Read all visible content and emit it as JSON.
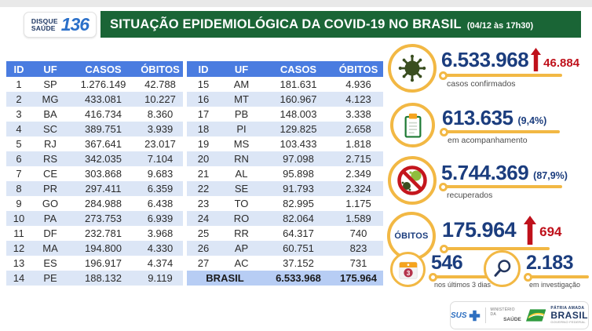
{
  "header": {
    "hotline": {
      "line1": "DISQUE",
      "line2": "SAÚDE",
      "number": "136"
    },
    "title": "SITUAÇÃO EPIDEMIOLÓGICA DA COVID-19 NO BRASIL",
    "timestamp": "(04/12 às 17h30)"
  },
  "tables": {
    "columns": [
      "ID",
      "UF",
      "CASOS",
      "ÓBITOS"
    ],
    "left_rows": [
      [
        "1",
        "SP",
        "1.276.149",
        "42.788"
      ],
      [
        "2",
        "MG",
        "433.081",
        "10.227"
      ],
      [
        "3",
        "BA",
        "416.734",
        "8.360"
      ],
      [
        "4",
        "SC",
        "389.751",
        "3.939"
      ],
      [
        "5",
        "RJ",
        "367.641",
        "23.017"
      ],
      [
        "6",
        "RS",
        "342.035",
        "7.104"
      ],
      [
        "7",
        "CE",
        "303.868",
        "9.683"
      ],
      [
        "8",
        "PR",
        "297.411",
        "6.359"
      ],
      [
        "9",
        "GO",
        "284.988",
        "6.438"
      ],
      [
        "10",
        "PA",
        "273.753",
        "6.939"
      ],
      [
        "11",
        "DF",
        "232.781",
        "3.968"
      ],
      [
        "12",
        "MA",
        "194.800",
        "4.330"
      ],
      [
        "13",
        "ES",
        "196.917",
        "4.374"
      ],
      [
        "14",
        "PE",
        "188.132",
        "9.119"
      ]
    ],
    "right_rows": [
      [
        "15",
        "AM",
        "181.631",
        "4.936"
      ],
      [
        "16",
        "MT",
        "160.967",
        "4.123"
      ],
      [
        "17",
        "PB",
        "148.003",
        "3.338"
      ],
      [
        "18",
        "PI",
        "129.825",
        "2.658"
      ],
      [
        "19",
        "MS",
        "103.433",
        "1.818"
      ],
      [
        "20",
        "RN",
        "97.098",
        "2.715"
      ],
      [
        "21",
        "AL",
        "95.898",
        "2.349"
      ],
      [
        "22",
        "SE",
        "91.793",
        "2.324"
      ],
      [
        "23",
        "TO",
        "82.995",
        "1.175"
      ],
      [
        "24",
        "RO",
        "82.064",
        "1.589"
      ],
      [
        "25",
        "RR",
        "64.317",
        "740"
      ],
      [
        "26",
        "AP",
        "60.751",
        "823"
      ],
      [
        "27",
        "AC",
        "37.152",
        "731"
      ]
    ],
    "total_row": {
      "label": "BRASIL",
      "casos": "6.533.968",
      "obitos": "175.964"
    }
  },
  "stats": {
    "confirmed": {
      "value": "6.533.968",
      "delta": "46.884",
      "label": "casos confirmados"
    },
    "monitoring": {
      "value": "613.635",
      "pct": "(9,4%)",
      "label": "em acompanhamento"
    },
    "recovered": {
      "value": "5.744.369",
      "pct": "(87,9%)",
      "label": "recuperados"
    },
    "deaths": {
      "badge": "ÓBITOS",
      "value": "175.964",
      "delta": "694"
    },
    "deaths_recent": {
      "value": "546",
      "label": "nos últimos 3 dias",
      "badge_day": "3"
    },
    "under_investigation": {
      "value": "2.183",
      "label": "em investigação"
    }
  },
  "footer": {
    "sus_label": "SUS",
    "ministry_line1": "MINISTÉRIO DA",
    "ministry_line2": "SAÚDE",
    "brand_top": "PÁTRIA AMADA",
    "brand_main": "BRASIL",
    "brand_bottom": "GOVERNO FEDERAL"
  },
  "colors": {
    "banner_green": "#1A6536",
    "table_header_blue": "#4A7CE0",
    "row_alt_blue": "#DCE6F6",
    "total_row_blue": "#B7CDF4",
    "value_navy": "#1B3D7E",
    "alert_red": "#BF111B",
    "accent_yellow": "#F2B844"
  },
  "chart_data": {
    "type": "table",
    "title": "SITUAÇÃO EPIDEMIOLÓGICA DA COVID-19 NO BRASIL (04/12 às 17h30)",
    "columns": [
      "ID",
      "UF",
      "CASOS",
      "ÓBITOS"
    ],
    "rows": [
      [
        1,
        "SP",
        1276149,
        42788
      ],
      [
        2,
        "MG",
        433081,
        10227
      ],
      [
        3,
        "BA",
        416734,
        8360
      ],
      [
        4,
        "SC",
        389751,
        3939
      ],
      [
        5,
        "RJ",
        367641,
        23017
      ],
      [
        6,
        "RS",
        342035,
        7104
      ],
      [
        7,
        "CE",
        303868,
        9683
      ],
      [
        8,
        "PR",
        297411,
        6359
      ],
      [
        9,
        "GO",
        284988,
        6438
      ],
      [
        10,
        "PA",
        273753,
        6939
      ],
      [
        11,
        "DF",
        232781,
        3968
      ],
      [
        12,
        "MA",
        194800,
        4330
      ],
      [
        13,
        "ES",
        196917,
        4374
      ],
      [
        14,
        "PE",
        188132,
        9119
      ],
      [
        15,
        "AM",
        181631,
        4936
      ],
      [
        16,
        "MT",
        160967,
        4123
      ],
      [
        17,
        "PB",
        148003,
        3338
      ],
      [
        18,
        "PI",
        129825,
        2658
      ],
      [
        19,
        "MS",
        103433,
        1818
      ],
      [
        20,
        "RN",
        97098,
        2715
      ],
      [
        21,
        "AL",
        95898,
        2349
      ],
      [
        22,
        "SE",
        91793,
        2324
      ],
      [
        23,
        "TO",
        82995,
        1175
      ],
      [
        24,
        "RO",
        82064,
        1589
      ],
      [
        25,
        "RR",
        64317,
        740
      ],
      [
        26,
        "AP",
        60751,
        823
      ],
      [
        27,
        "AC",
        37152,
        731
      ]
    ],
    "total": {
      "label": "BRASIL",
      "casos": 6533968,
      "obitos": 175964
    },
    "summary": {
      "casos_confirmados": 6533968,
      "casos_confirmados_aumento": 46884,
      "em_acompanhamento": 613635,
      "em_acompanhamento_pct": "9,4%",
      "recuperados": 5744369,
      "recuperados_pct": "87,9%",
      "obitos": 175964,
      "obitos_aumento": 694,
      "obitos_ultimos_3_dias": 546,
      "em_investigacao": 2183
    }
  }
}
